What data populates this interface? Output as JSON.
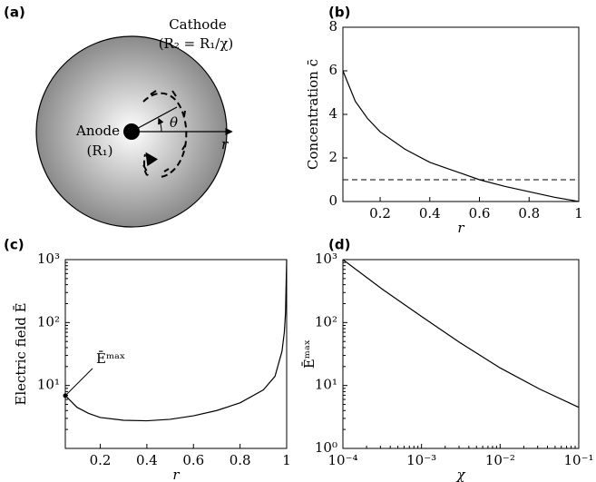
{
  "diagram": {
    "panel_label": "(a)",
    "cathode": "Cathode",
    "cathode_radius": "(R₂ = R₁/χ)",
    "anode": "Anode",
    "anode_radius": "(R₁)",
    "angle": "θ",
    "radial": "r"
  },
  "chart_data": [
    {
      "type": "line",
      "panel_label": "(b)",
      "ylabel": "Concentration c̄",
      "xlabel": "r",
      "xlim": [
        0.05,
        1
      ],
      "ylim": [
        0,
        8
      ],
      "xticks": [
        0.2,
        0.4,
        0.6,
        0.8,
        1
      ],
      "yticks": [
        0,
        2,
        4,
        6,
        8
      ],
      "x": [
        0.05,
        0.1,
        0.15,
        0.2,
        0.3,
        0.4,
        0.5,
        0.6,
        0.7,
        0.8,
        0.9,
        1
      ],
      "series": [
        {
          "color": "#000000",
          "values": [
            6.0,
            4.6,
            3.8,
            3.2,
            2.4,
            1.8,
            1.4,
            1.0,
            0.7,
            0.45,
            0.2,
            0
          ]
        }
      ],
      "reference_line": {
        "value": 1,
        "style": "dashed"
      }
    },
    {
      "type": "line",
      "panel_label": "(c)",
      "ylabel": "Electric field Ē",
      "xlabel": "r",
      "yscale": "log",
      "xlim": [
        0.05,
        1
      ],
      "ylim": [
        1,
        1000
      ],
      "xticks": [
        0.2,
        0.4,
        0.6,
        0.8,
        1
      ],
      "yticks": [
        {
          "value": 10,
          "label": "10¹"
        },
        {
          "value": 100,
          "label": "10²"
        },
        {
          "value": 1000,
          "label": "10³"
        }
      ],
      "x": [
        0.05,
        0.1,
        0.15,
        0.2,
        0.3,
        0.4,
        0.5,
        0.6,
        0.7,
        0.8,
        0.9,
        0.95,
        0.98,
        0.99,
        0.995,
        1
      ],
      "series": [
        {
          "color": "#000000",
          "values": [
            6.9,
            4.5,
            3.6,
            3.1,
            2.8,
            2.75,
            2.9,
            3.3,
            4.0,
            5.3,
            8.5,
            14,
            35,
            70,
            140,
            1000
          ]
        }
      ],
      "annotation": "Ēᵐᵃˣ"
    },
    {
      "type": "line",
      "panel_label": "(d)",
      "ylabel": "Ēᵐᵃˣ",
      "xlabel": "χ",
      "xscale": "log",
      "yscale": "log",
      "xlim": [
        0.0001,
        0.1
      ],
      "ylim": [
        1,
        1000
      ],
      "xticks": [
        {
          "value": 0.0001,
          "label": "10⁻⁴"
        },
        {
          "value": 0.001,
          "label": "10⁻³"
        },
        {
          "value": 0.01,
          "label": "10⁻²"
        },
        {
          "value": 0.1,
          "label": "10⁻¹"
        }
      ],
      "yticks": [
        {
          "value": 1,
          "label": "10⁰"
        },
        {
          "value": 10,
          "label": "10¹"
        },
        {
          "value": 100,
          "label": "10²"
        },
        {
          "value": 1000,
          "label": "10³"
        }
      ],
      "x": [
        0.0001,
        0.000316,
        0.001,
        0.00316,
        0.01,
        0.0316,
        0.1
      ],
      "series": [
        {
          "color": "#000000",
          "values": [
            1000,
            340,
            125,
            47,
            19,
            8.8,
            4.5
          ]
        }
      ]
    }
  ]
}
